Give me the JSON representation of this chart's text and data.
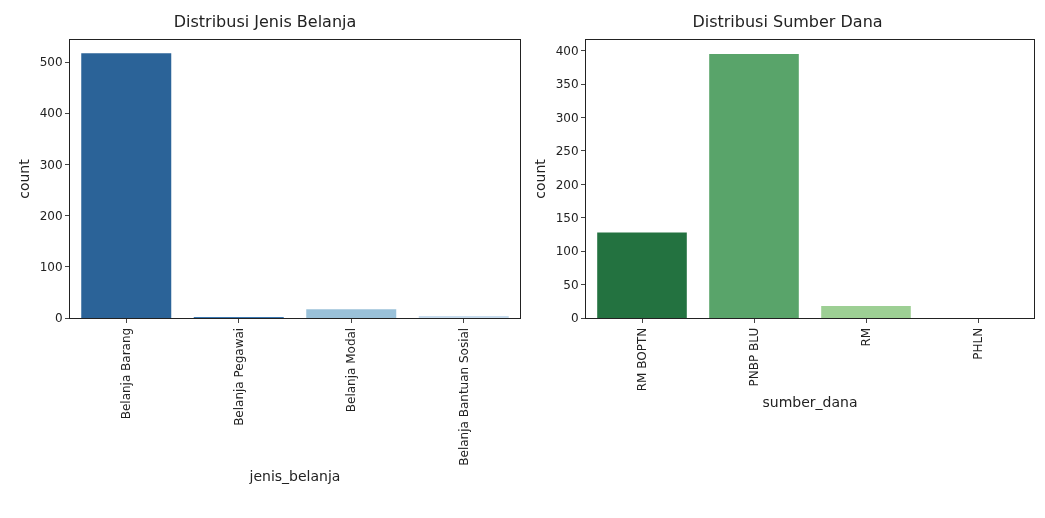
{
  "chart_data": [
    {
      "type": "bar",
      "title": "Distribusi Jenis Belanja",
      "xlabel": "jenis_belanja",
      "ylabel": "count",
      "categories": [
        "Belanja Barang",
        "Belanja Pegawai",
        "Belanja Modal",
        "Belanja Bantuan Sosial"
      ],
      "values": [
        517,
        2,
        17,
        4
      ],
      "colors": [
        "#2b6398",
        "#3a78b3",
        "#9ac1d9",
        "#c6dbed"
      ],
      "ylim": [
        0,
        543
      ],
      "yticks": [
        0,
        100,
        200,
        300,
        400,
        500
      ],
      "grid": false
    },
    {
      "type": "bar",
      "title": "Distribusi Sumber Dana",
      "xlabel": "sumber_dana",
      "ylabel": "count",
      "categories": [
        "RM BOPTN",
        "PNBP BLU",
        "RM",
        "PHLN"
      ],
      "values": [
        128,
        395,
        18,
        null
      ],
      "colors": [
        "#237240",
        "#59a46a",
        "#9dcf94",
        "#d4eecf"
      ],
      "ylim": [
        0,
        416
      ],
      "yticks": [
        0,
        50,
        100,
        150,
        200,
        250,
        300,
        350,
        400
      ],
      "grid": false
    }
  ]
}
